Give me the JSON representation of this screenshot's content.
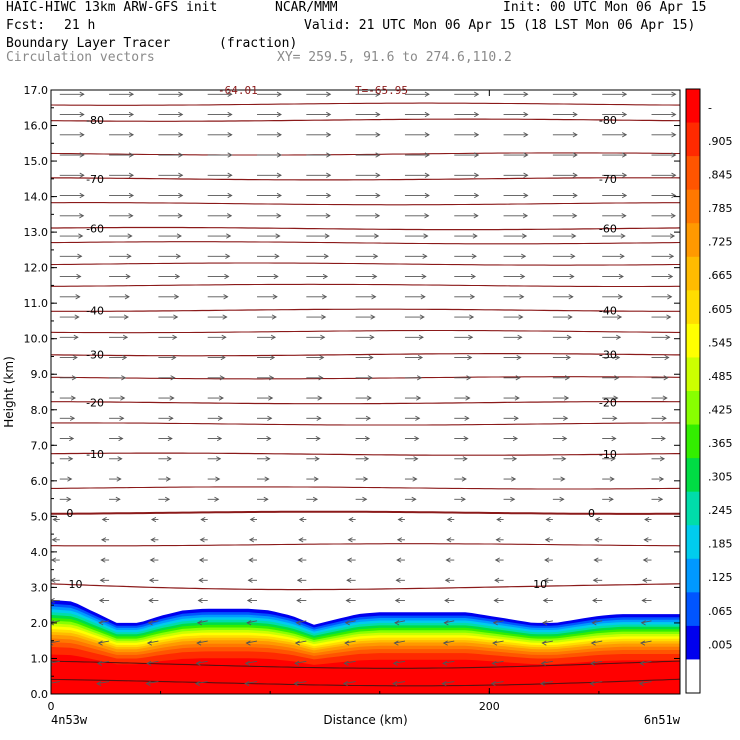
{
  "header": {
    "model": "HAIC-HIWC 13km ARW-GFS init",
    "org": "NCAR/MMM",
    "init": "Init: 00 UTC Mon 06 Apr 15",
    "fcst_label": "Fcst:",
    "fcst_value": "21 h",
    "valid": "Valid: 21 UTC Mon 06 Apr 15 (18 LST Mon 06 Apr 15)",
    "field": "Boundary Layer Tracer",
    "units": "(fraction)",
    "overlay": "Circulation vectors",
    "xy": "XY= 259.5, 91.6 to 274.6,110.2"
  },
  "top_labels": [
    "-64.01",
    "T=-65.95"
  ],
  "chart_data": {
    "type": "heatmap",
    "xlabel": "Distance (km)",
    "ylabel": "Height (km)",
    "xlim": [
      0,
      287
    ],
    "ylim": [
      0,
      17
    ],
    "x_ticks": [
      0,
      200
    ],
    "x_tick_labels": [
      "0",
      "200"
    ],
    "x_end_labels": [
      "4n53w",
      "6n51w"
    ],
    "y_ticks": [
      0,
      1,
      2,
      3,
      4,
      5,
      6,
      7,
      8,
      9,
      10,
      11,
      12,
      13,
      14,
      15,
      16,
      17
    ],
    "y_tick_labels": [
      "0.0",
      "1.0",
      "2.0",
      "3.0",
      "4.0",
      "5.0",
      "6.0",
      "7.0",
      "8.0",
      "9.0",
      "10.0",
      "11.0",
      "12.0",
      "13.0",
      "14.0",
      "15.0",
      "16.0",
      "17.0"
    ],
    "colorbar": {
      "labels": [
        "-",
        ".905",
        ".845",
        ".785",
        ".725",
        ".665",
        ".605",
        ".545",
        ".485",
        ".425",
        ".365",
        ".305",
        ".245",
        ".185",
        ".125",
        ".065",
        ".005"
      ],
      "colors": [
        "#ff0000",
        "#ff2a00",
        "#ff5500",
        "#ff7800",
        "#ff9900",
        "#ffbb00",
        "#ffdd00",
        "#ffff00",
        "#ccff00",
        "#88ff00",
        "#33ee00",
        "#00dd44",
        "#00ddaa",
        "#00ccee",
        "#0099ff",
        "#0055ff",
        "#0000ee",
        "#ffffff"
      ]
    },
    "boundary_layer_top_km": {
      "x": [
        0,
        10,
        20,
        30,
        40,
        50,
        60,
        70,
        80,
        90,
        100,
        110,
        120,
        130,
        140,
        150,
        160,
        170,
        180,
        190,
        200,
        210,
        220,
        230,
        240,
        250,
        260,
        270,
        280,
        287
      ],
      "y": [
        2.65,
        2.6,
        2.3,
        2.0,
        2.0,
        2.2,
        2.35,
        2.4,
        2.4,
        2.4,
        2.35,
        2.2,
        1.95,
        2.1,
        2.25,
        2.3,
        2.3,
        2.3,
        2.3,
        2.3,
        2.2,
        2.1,
        2.0,
        2.0,
        2.1,
        2.2,
        2.25,
        2.25,
        2.25,
        2.25
      ]
    },
    "temperature_contours": [
      {
        "label": "-80",
        "height_km": 16.15,
        "label_x_km": [
          16,
          250
        ]
      },
      {
        "label": "-70",
        "height_km": 14.5,
        "label_x_km": [
          16,
          250
        ]
      },
      {
        "label": "-60",
        "height_km": 13.1,
        "label_x_km": [
          16,
          250
        ]
      },
      {
        "label": "-40",
        "height_km": 10.8,
        "label_x_km": [
          16,
          250
        ]
      },
      {
        "label": "-30",
        "height_km": 9.55,
        "label_x_km": [
          16,
          250
        ]
      },
      {
        "label": "-20",
        "height_km": 8.2,
        "label_x_km": [
          16,
          250
        ]
      },
      {
        "label": "-10",
        "height_km": 6.75,
        "label_x_km": [
          16,
          250
        ]
      },
      {
        "label": "0",
        "height_km": 5.1,
        "label_x_km": [
          7,
          245
        ]
      },
      {
        "label": "10",
        "height_km": 3.1,
        "label_x_km": [
          8,
          220
        ]
      }
    ],
    "extra_contour_heights_km": [
      16.6,
      15.2,
      13.8,
      12.7,
      12.1,
      11.5,
      10.2,
      8.9,
      7.6,
      5.8,
      4.2,
      0.9,
      0.4
    ]
  }
}
